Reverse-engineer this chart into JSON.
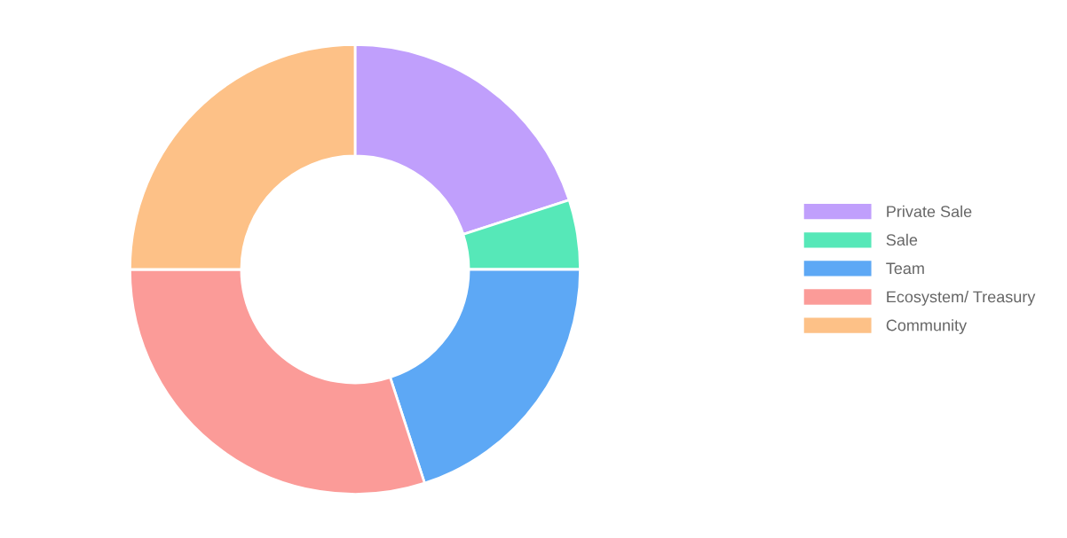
{
  "chart_data": {
    "type": "donut",
    "categories": [
      "Private Sale",
      "Sale",
      "Team",
      "Ecosystem/ Treasury",
      "Community"
    ],
    "values": [
      20,
      5,
      20,
      30,
      25
    ],
    "colors": [
      "#c09ffc",
      "#56e8b8",
      "#5da8f5",
      "#fb9b98",
      "#fdc187"
    ],
    "legend": "right"
  }
}
